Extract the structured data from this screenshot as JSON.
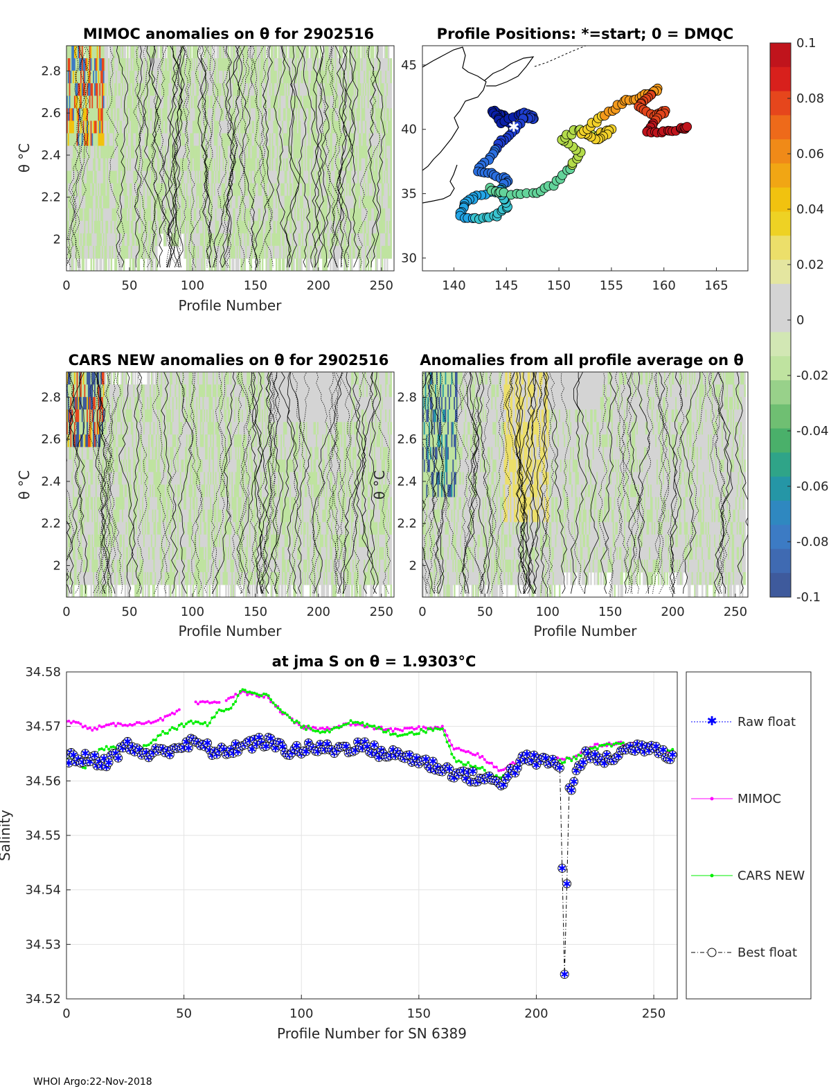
{
  "footer": "WHOI Argo:22-Nov-2018",
  "chart_data": [
    {
      "id": "mimoc",
      "type": "heatmap",
      "title": "MIMOC anomalies on θ  for 2902516",
      "xlabel": "Profile Number",
      "ylabel": "θ °C",
      "xlim": [
        0,
        260
      ],
      "ylim": [
        1.85,
        2.92
      ],
      "xticks": [
        "0",
        "50",
        "100",
        "150",
        "200",
        "250"
      ],
      "yticks": [
        "2",
        "2.2",
        "2.4",
        "2.6",
        "2.8"
      ]
    },
    {
      "id": "positions",
      "type": "scatter",
      "title": "Profile Positions: *=start; 0 = DMQC",
      "xlim": [
        137,
        168
      ],
      "ylim": [
        29,
        46.5
      ],
      "xticks": [
        "140",
        "145",
        "150",
        "155",
        "160",
        "165"
      ],
      "yticks": [
        "30",
        "35",
        "40",
        "45"
      ],
      "start": [
        145.7,
        40.2
      ]
    },
    {
      "id": "cars",
      "type": "heatmap",
      "title": "CARS NEW anomalies on θ for 2902516",
      "xlabel": "Profile Number",
      "ylabel": "θ °C",
      "xlim": [
        0,
        260
      ],
      "ylim": [
        1.85,
        2.92
      ],
      "xticks": [
        "0",
        "50",
        "100",
        "150",
        "200",
        "250"
      ],
      "yticks": [
        "2",
        "2.2",
        "2.4",
        "2.6",
        "2.8"
      ]
    },
    {
      "id": "avg",
      "type": "heatmap",
      "title": "Anomalies from all profile average on θ",
      "xlabel": "Profile Number",
      "ylabel": "θ °C",
      "xlim": [
        0,
        260
      ],
      "ylim": [
        1.85,
        2.92
      ],
      "xticks": [
        "0",
        "50",
        "100",
        "150",
        "200",
        "250"
      ],
      "yticks": [
        "2",
        "2.2",
        "2.4",
        "2.6",
        "2.8"
      ]
    },
    {
      "id": "colorbar",
      "type": "colorbar",
      "range": [
        -0.1,
        0.1
      ],
      "ticks": [
        "0.1",
        "0.08",
        "0.06",
        "0.04",
        "0.02",
        "0",
        "-0.02",
        "-0.04",
        "-0.06",
        "-0.08",
        "-0.1"
      ]
    },
    {
      "id": "salinity",
      "type": "line",
      "title": "at jma S on θ = 1.9303°C",
      "xlabel": "Profile Number for SN 6389",
      "ylabel": "Salinity",
      "xlim": [
        0,
        260
      ],
      "ylim": [
        34.52,
        34.58
      ],
      "xticks": [
        "0",
        "50",
        "100",
        "150",
        "200",
        "250"
      ],
      "yticks": [
        "34.58",
        "34.57",
        "34.56",
        "34.55",
        "34.54",
        "34.53",
        "34.52"
      ],
      "legend": [
        "Raw float",
        "MIMOC",
        "CARS NEW",
        "Best float"
      ],
      "legend_position": "outside-right",
      "series": [
        {
          "name": "Raw float",
          "color": "#0000ff"
        },
        {
          "name": "MIMOC",
          "color": "#ff00ff"
        },
        {
          "name": "CARS NEW",
          "color": "#00ee00"
        },
        {
          "name": "Best float",
          "color": "#000000"
        }
      ],
      "mimoc_anchors": [
        [
          0,
          34.5712
        ],
        [
          5,
          34.5705
        ],
        [
          10,
          34.5695
        ],
        [
          20,
          34.5703
        ],
        [
          30,
          34.5705
        ],
        [
          40,
          34.5712
        ],
        [
          48,
          34.5728
        ],
        [
          55,
          34.5742
        ],
        [
          65,
          34.5745
        ],
        [
          75,
          34.5762
        ],
        [
          85,
          34.5755
        ],
        [
          92,
          34.5725
        ],
        [
          100,
          34.5698
        ],
        [
          110,
          34.5695
        ],
        [
          120,
          34.5705
        ],
        [
          130,
          34.5698
        ],
        [
          140,
          34.5693
        ],
        [
          150,
          34.5697
        ],
        [
          160,
          34.5698
        ],
        [
          165,
          34.566
        ],
        [
          175,
          34.5648
        ],
        [
          185,
          34.5618
        ],
        [
          195,
          34.5645
        ],
        [
          205,
          34.564
        ],
        [
          215,
          34.5642
        ],
        [
          225,
          34.5665
        ],
        [
          235,
          34.567
        ],
        [
          245,
          34.5665
        ],
        [
          258,
          34.5655
        ]
      ],
      "mimoc_gaps": [
        [
          49,
          54
        ],
        [
          66,
          67
        ]
      ],
      "cars_anchors": [
        [
          0,
          34.5645
        ],
        [
          8,
          34.5625
        ],
        [
          15,
          34.566
        ],
        [
          25,
          34.5665
        ],
        [
          32,
          34.5658
        ],
        [
          40,
          34.5685
        ],
        [
          48,
          34.57
        ],
        [
          55,
          34.571
        ],
        [
          60,
          34.5702
        ],
        [
          65,
          34.5728
        ],
        [
          70,
          34.5735
        ],
        [
          75,
          34.5768
        ],
        [
          85,
          34.5758
        ],
        [
          92,
          34.5725
        ],
        [
          100,
          34.57
        ],
        [
          110,
          34.569
        ],
        [
          120,
          34.5708
        ],
        [
          130,
          34.57
        ],
        [
          140,
          34.5685
        ],
        [
          150,
          34.569
        ],
        [
          160,
          34.5698
        ],
        [
          165,
          34.564
        ],
        [
          175,
          34.5625
        ],
        [
          185,
          34.5605
        ],
        [
          195,
          34.564
        ],
        [
          205,
          34.5632
        ],
        [
          215,
          34.564
        ],
        [
          225,
          34.566
        ],
        [
          235,
          34.5668
        ],
        [
          245,
          34.566
        ],
        [
          258,
          34.5658
        ]
      ],
      "best_anchors": [
        [
          0,
          34.5642
        ],
        [
          10,
          34.564
        ],
        [
          18,
          34.5635
        ],
        [
          25,
          34.5665
        ],
        [
          35,
          34.5648
        ],
        [
          45,
          34.566
        ],
        [
          55,
          34.567
        ],
        [
          65,
          34.565
        ],
        [
          75,
          34.5665
        ],
        [
          85,
          34.5672
        ],
        [
          95,
          34.5655
        ],
        [
          105,
          34.566
        ],
        [
          115,
          34.5658
        ],
        [
          125,
          34.5665
        ],
        [
          135,
          34.565
        ],
        [
          145,
          34.5645
        ],
        [
          155,
          34.563
        ],
        [
          165,
          34.5615
        ],
        [
          175,
          34.5605
        ],
        [
          185,
          34.5598
        ],
        [
          195,
          34.564
        ],
        [
          205,
          34.5635
        ],
        [
          210,
          34.563
        ],
        [
          212,
          34.5245
        ],
        [
          214,
          34.558
        ],
        [
          220,
          34.5645
        ],
        [
          230,
          34.5638
        ],
        [
          240,
          34.566
        ],
        [
          250,
          34.5665
        ],
        [
          258,
          34.5645
        ]
      ]
    }
  ]
}
